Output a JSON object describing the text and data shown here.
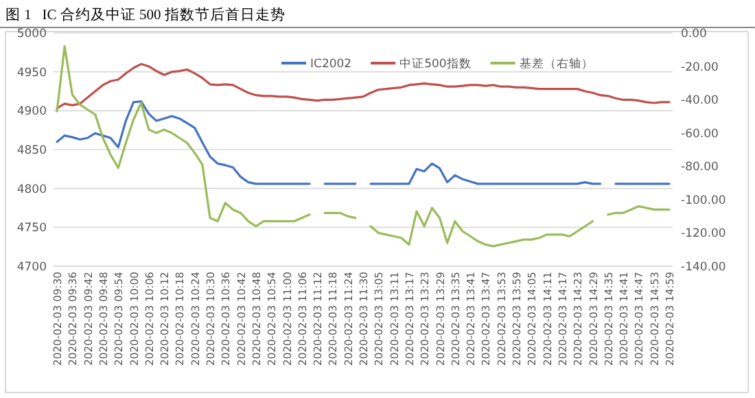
{
  "chart_data": {
    "type": "line",
    "title": "图 1   IC 合约及中证 500 指数节后首日走势",
    "categories": [
      "2020-02-03 09:30",
      null,
      "2020-02-03 09:36",
      null,
      "2020-02-03 09:42",
      null,
      "2020-02-03 09:48",
      null,
      "2020-02-03 09:54",
      null,
      "2020-02-03 10:00",
      null,
      "2020-02-03 10:06",
      null,
      "2020-02-03 10:12",
      null,
      "2020-02-03 10:18",
      null,
      "2020-02-03 10:24",
      null,
      "2020-02-03 10:30",
      null,
      "2020-02-03 10:36",
      null,
      "2020-02-03 10:42",
      null,
      "2020-02-03 10:48",
      null,
      "2020-02-03 10:54",
      null,
      "2020-02-03 11:00",
      null,
      "2020-02-03 11:06",
      null,
      "2020-02-03 11:12",
      null,
      "2020-02-03 11:18",
      null,
      "2020-02-03 11:24",
      null,
      "2020-02-03 11:30",
      null,
      "2020-02-03 13:05",
      null,
      "2020-02-03 13:11",
      null,
      "2020-02-03 13:17",
      null,
      "2020-02-03 13:23",
      null,
      "2020-02-03 13:29",
      null,
      "2020-02-03 13:35",
      null,
      "2020-02-03 13:41",
      null,
      "2020-02-03 13:47",
      null,
      "2020-02-03 13:53",
      null,
      "2020-02-03 13:59",
      null,
      "2020-02-03 14:05",
      null,
      "2020-02-03 14:11",
      null,
      "2020-02-03 14:17",
      null,
      "2020-02-03 14:23",
      null,
      "2020-02-03 14:29",
      null,
      "2020-02-03 14:35",
      null,
      "2020-02-03 14:41",
      null,
      "2020-02-03 14:47",
      null,
      "2020-02-03 14:53",
      null,
      "2020-02-03 14:59"
    ],
    "series": [
      {
        "name": "IC2002",
        "color": "#4472c4",
        "values": [
          4860,
          4868,
          4866,
          4863,
          4865,
          4871,
          4868,
          4865,
          4853,
          4887,
          4911,
          4912,
          4896,
          4887,
          4890,
          4893,
          4890,
          4884,
          4878,
          4859,
          4841,
          4832,
          4830,
          4827,
          4815,
          4808,
          4806,
          4806,
          4806,
          4806,
          4806,
          4806,
          4806,
          4806,
          null,
          4806,
          4806,
          4806,
          4806,
          4806,
          null,
          4806,
          4806,
          4806,
          4806,
          4806,
          4806,
          4825,
          4822,
          4832,
          4826,
          4808,
          4817,
          4812,
          4809,
          4806,
          4806,
          4806,
          4806,
          4806,
          4806,
          4806,
          4806,
          4806,
          4806,
          4806,
          4806,
          4806,
          4806,
          4808,
          4806,
          4806,
          null,
          4806,
          4806,
          4806,
          4806,
          4806,
          4806,
          4806,
          4806
        ]
      },
      {
        "name": "中证500指数",
        "color": "#c0504d",
        "values": [
          4903,
          4909,
          4907,
          4909,
          4917,
          4925,
          4933,
          4938,
          4940,
          4948,
          4955,
          4960,
          4957,
          4951,
          4946,
          4950,
          4951,
          4953,
          4948,
          4942,
          4934,
          4933,
          4934,
          4933,
          4928,
          4923,
          4920,
          4919,
          4919,
          4918,
          4918,
          4917,
          4915,
          4914,
          4913,
          4914,
          4914,
          4915,
          4916,
          4917,
          4918,
          4923,
          4927,
          4928,
          4929,
          4930,
          4933,
          4934,
          4935,
          4934,
          4933,
          4931,
          4931,
          4932,
          4933,
          4933,
          4932,
          4933,
          4931,
          4931,
          4930,
          4930,
          4929,
          4928,
          4928,
          4928,
          4928,
          4928,
          4928,
          4925,
          4923,
          4920,
          4919,
          4916,
          4914,
          4914,
          4913,
          4911,
          4910,
          4911,
          4911
        ]
      },
      {
        "name": "基差（右轴）",
        "color": "#9bbb59",
        "axis": "y2",
        "values": [
          -47,
          -8,
          -37,
          -43,
          -46,
          -49,
          -63,
          -73,
          -81,
          -66,
          -52,
          -42,
          -58,
          -60,
          -58,
          -60,
          -63,
          -66,
          -72,
          -79,
          -111,
          -113,
          -102,
          -106,
          -108,
          -113,
          -116,
          -113,
          -113,
          -113,
          -113,
          -113,
          -111,
          -109,
          null,
          -108,
          -108,
          -108,
          -110,
          -111,
          null,
          -116,
          -120,
          -121,
          -122,
          -123,
          -127,
          -107,
          -116,
          -105,
          -111,
          -126,
          -113,
          -119,
          -122,
          -125,
          -127,
          -128,
          -127,
          -126,
          -125,
          -124,
          -124,
          -123,
          -121,
          -121,
          -121,
          -122,
          -119,
          -116,
          -113,
          null,
          -109,
          -108,
          -108,
          -106,
          -104,
          -105,
          -106,
          -106,
          -106
        ]
      }
    ],
    "ylim": [
      4700,
      5000
    ],
    "yticks": [
      4700,
      4750,
      4800,
      4850,
      4900,
      4950,
      5000
    ],
    "y2lim": [
      -140,
      0
    ],
    "y2ticks": [
      {
        "value": -140,
        "label": "-140.00"
      },
      {
        "value": -120,
        "label": "-120.00"
      },
      {
        "value": -100,
        "label": "-100.00"
      },
      {
        "value": -80,
        "label": "-80.00"
      },
      {
        "value": -60,
        "label": "-60.00"
      },
      {
        "value": -40,
        "label": "-40.00"
      },
      {
        "value": -20,
        "label": "-20.00"
      },
      {
        "value": 0,
        "label": "0.00"
      }
    ],
    "grid": "y",
    "legend": "top",
    "marker": "none",
    "line_style": "solid"
  }
}
